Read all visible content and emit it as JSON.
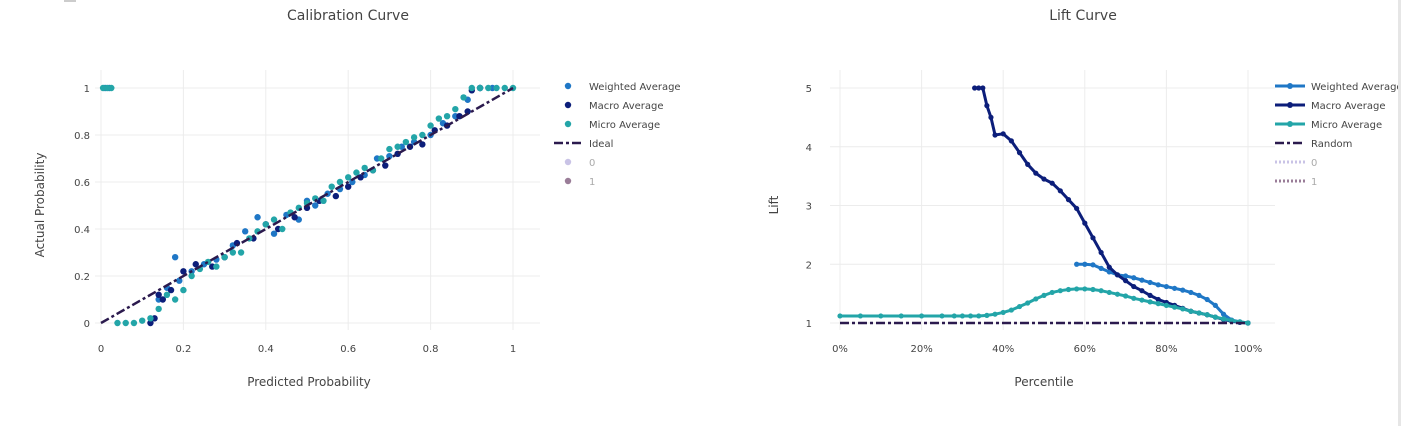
{
  "colors": {
    "weighted": "#1f77c6",
    "macro": "#0c1e7a",
    "micro": "#23a5a8",
    "ideal": "#2b1a4e",
    "class0": "#c9c3e6",
    "class1": "#9a7d98",
    "grid": "#ececec",
    "axis_text": "#444444",
    "legend_faded": "#aaaaaa"
  },
  "chart_data": [
    {
      "type": "scatter",
      "title": "Calibration Curve",
      "xlabel": "Predicted Probability",
      "ylabel": "Actual Probability",
      "xlim": [
        0,
        1
      ],
      "ylim": [
        0,
        1
      ],
      "x_ticks": [
        0,
        0.2,
        0.4,
        0.6,
        0.8,
        1
      ],
      "x_tick_labels": [
        "0",
        "0.2",
        "0.4",
        "0.6",
        "0.8",
        "1"
      ],
      "y_ticks": [
        0,
        0.2,
        0.4,
        0.6,
        0.8,
        1
      ],
      "y_tick_labels": [
        "0",
        "0.2",
        "0.4",
        "0.6",
        "0.8",
        "1"
      ],
      "grid": true,
      "legend_position": "right",
      "legend": [
        {
          "label": "Weighted Average",
          "kind": "marker",
          "color_key": "weighted",
          "faded": false
        },
        {
          "label": "Macro Average",
          "kind": "marker",
          "color_key": "macro",
          "faded": false
        },
        {
          "label": "Micro Average",
          "kind": "marker",
          "color_key": "micro",
          "faded": false
        },
        {
          "label": "Ideal",
          "kind": "dashdot",
          "color_key": "ideal",
          "faded": false
        },
        {
          "label": "0",
          "kind": "marker",
          "color_key": "class0",
          "faded": true
        },
        {
          "label": "1",
          "kind": "marker",
          "color_key": "class1",
          "faded": true
        }
      ],
      "series": [
        {
          "name": "Weighted Average",
          "color_key": "weighted",
          "mode": "markers",
          "x": [
            0.01,
            0.02,
            0.14,
            0.16,
            0.18,
            0.19,
            0.22,
            0.25,
            0.28,
            0.32,
            0.35,
            0.38,
            0.42,
            0.45,
            0.48,
            0.5,
            0.52,
            0.55,
            0.58,
            0.61,
            0.64,
            0.67,
            0.7,
            0.73,
            0.76,
            0.8,
            0.83,
            0.86,
            0.89,
            0.92,
            0.95
          ],
          "y": [
            1,
            1,
            0.1,
            0.15,
            0.28,
            0.18,
            0.22,
            0.25,
            0.27,
            0.33,
            0.39,
            0.45,
            0.38,
            0.46,
            0.44,
            0.52,
            0.5,
            0.55,
            0.57,
            0.6,
            0.63,
            0.7,
            0.71,
            0.75,
            0.77,
            0.8,
            0.85,
            0.88,
            0.95,
            1,
            1
          ]
        },
        {
          "name": "Macro Average",
          "color_key": "macro",
          "mode": "markers",
          "x": [
            0.12,
            0.13,
            0.14,
            0.15,
            0.17,
            0.2,
            0.23,
            0.27,
            0.3,
            0.33,
            0.37,
            0.4,
            0.43,
            0.47,
            0.5,
            0.53,
            0.57,
            0.6,
            0.63,
            0.66,
            0.69,
            0.72,
            0.75,
            0.78,
            0.81,
            0.84,
            0.87,
            0.89,
            0.9,
            0.92
          ],
          "y": [
            0,
            0.02,
            0.12,
            0.1,
            0.14,
            0.22,
            0.25,
            0.24,
            0.28,
            0.34,
            0.36,
            0.42,
            0.4,
            0.45,
            0.49,
            0.52,
            0.54,
            0.58,
            0.62,
            0.65,
            0.67,
            0.72,
            0.75,
            0.76,
            0.82,
            0.84,
            0.88,
            0.9,
            0.99,
            1
          ]
        },
        {
          "name": "Micro Average",
          "color_key": "micro",
          "mode": "markers",
          "x": [
            0.005,
            0.015,
            0.025,
            0.04,
            0.06,
            0.08,
            0.1,
            0.12,
            0.14,
            0.16,
            0.18,
            0.2,
            0.22,
            0.24,
            0.26,
            0.28,
            0.3,
            0.32,
            0.34,
            0.36,
            0.38,
            0.4,
            0.42,
            0.44,
            0.46,
            0.48,
            0.5,
            0.52,
            0.54,
            0.56,
            0.58,
            0.6,
            0.62,
            0.64,
            0.66,
            0.68,
            0.7,
            0.72,
            0.74,
            0.76,
            0.78,
            0.8,
            0.82,
            0.84,
            0.86,
            0.88,
            0.9,
            0.92,
            0.94,
            0.96,
            0.98,
            1.0
          ],
          "y": [
            1,
            1,
            1,
            0,
            0,
            0,
            0.01,
            0.02,
            0.06,
            0.12,
            0.1,
            0.14,
            0.2,
            0.23,
            0.26,
            0.24,
            0.28,
            0.3,
            0.3,
            0.36,
            0.39,
            0.42,
            0.44,
            0.4,
            0.47,
            0.49,
            0.51,
            0.53,
            0.52,
            0.58,
            0.6,
            0.62,
            0.64,
            0.66,
            0.65,
            0.7,
            0.74,
            0.75,
            0.77,
            0.79,
            0.8,
            0.84,
            0.87,
            0.88,
            0.91,
            0.96,
            1,
            1,
            1,
            1,
            1,
            1
          ]
        },
        {
          "name": "Ideal",
          "color_key": "ideal",
          "mode": "line",
          "dash": "dashdot",
          "x": [
            0,
            1
          ],
          "y": [
            0,
            1
          ]
        }
      ]
    },
    {
      "type": "line",
      "title": "Lift Curve",
      "xlabel": "Percentile",
      "ylabel": "Lift",
      "xlim": [
        0,
        100
      ],
      "ylim": [
        1,
        5
      ],
      "x_ticks": [
        0,
        20,
        40,
        60,
        80,
        100
      ],
      "x_tick_labels": [
        "0%",
        "20%",
        "40%",
        "60%",
        "80%",
        "100%"
      ],
      "y_ticks": [
        1,
        2,
        3,
        4,
        5
      ],
      "y_tick_labels": [
        "1",
        "2",
        "3",
        "4",
        "5"
      ],
      "grid": true,
      "legend_position": "right",
      "legend": [
        {
          "label": "Weighted Average",
          "kind": "line-marker",
          "color_key": "weighted",
          "faded": false
        },
        {
          "label": "Macro Average",
          "kind": "line-marker",
          "color_key": "macro",
          "faded": false
        },
        {
          "label": "Micro Average",
          "kind": "line-marker",
          "color_key": "micro",
          "faded": false
        },
        {
          "label": "Random",
          "kind": "dashdot",
          "color_key": "ideal",
          "faded": false
        },
        {
          "label": "0",
          "kind": "dotted",
          "color_key": "class0",
          "faded": true
        },
        {
          "label": "1",
          "kind": "dotted",
          "color_key": "class1",
          "faded": true
        }
      ],
      "series": [
        {
          "name": "Weighted Average",
          "color_key": "weighted",
          "mode": "lines+markers",
          "x": [
            58,
            60,
            62,
            64,
            66,
            68,
            70,
            72,
            74,
            76,
            78,
            80,
            82,
            84,
            86,
            88,
            90,
            92,
            94,
            96,
            98,
            100
          ],
          "y": [
            2,
            2,
            1.99,
            1.93,
            1.87,
            1.82,
            1.8,
            1.77,
            1.73,
            1.69,
            1.65,
            1.62,
            1.59,
            1.56,
            1.52,
            1.47,
            1.4,
            1.3,
            1.15,
            1.05,
            1.02,
            1
          ]
        },
        {
          "name": "Macro Average",
          "color_key": "macro",
          "mode": "lines+markers",
          "x": [
            33,
            34,
            35,
            36,
            37,
            38,
            40,
            42,
            44,
            46,
            48,
            50,
            52,
            54,
            56,
            58,
            60,
            62,
            64,
            66,
            68,
            70,
            72,
            74,
            76,
            78,
            80,
            82,
            84,
            86,
            88,
            90,
            92,
            94,
            96,
            98,
            100
          ],
          "y": [
            5,
            5,
            5,
            4.7,
            4.5,
            4.2,
            4.22,
            4.1,
            3.9,
            3.7,
            3.55,
            3.45,
            3.38,
            3.25,
            3.1,
            2.95,
            2.7,
            2.45,
            2.2,
            1.95,
            1.82,
            1.72,
            1.62,
            1.55,
            1.47,
            1.4,
            1.35,
            1.3,
            1.25,
            1.2,
            1.17,
            1.14,
            1.1,
            1.06,
            1.03,
            1.01,
            1
          ]
        },
        {
          "name": "Micro Average",
          "color_key": "micro",
          "mode": "lines+markers",
          "x": [
            0,
            5,
            10,
            15,
            20,
            25,
            28,
            30,
            32,
            34,
            36,
            38,
            40,
            42,
            44,
            46,
            48,
            50,
            52,
            54,
            56,
            58,
            60,
            62,
            64,
            66,
            68,
            70,
            72,
            74,
            76,
            78,
            80,
            82,
            84,
            86,
            88,
            90,
            92,
            94,
            96,
            98,
            100
          ],
          "y": [
            1.12,
            1.12,
            1.12,
            1.12,
            1.12,
            1.12,
            1.12,
            1.12,
            1.12,
            1.12,
            1.13,
            1.15,
            1.18,
            1.22,
            1.28,
            1.34,
            1.41,
            1.47,
            1.52,
            1.55,
            1.57,
            1.58,
            1.58,
            1.57,
            1.55,
            1.52,
            1.49,
            1.46,
            1.42,
            1.39,
            1.36,
            1.33,
            1.3,
            1.27,
            1.24,
            1.2,
            1.17,
            1.14,
            1.1,
            1.07,
            1.04,
            1.02,
            1
          ]
        },
        {
          "name": "Random",
          "color_key": "ideal",
          "mode": "line",
          "dash": "dashdot",
          "x": [
            0,
            100
          ],
          "y": [
            1,
            1
          ]
        }
      ]
    }
  ]
}
